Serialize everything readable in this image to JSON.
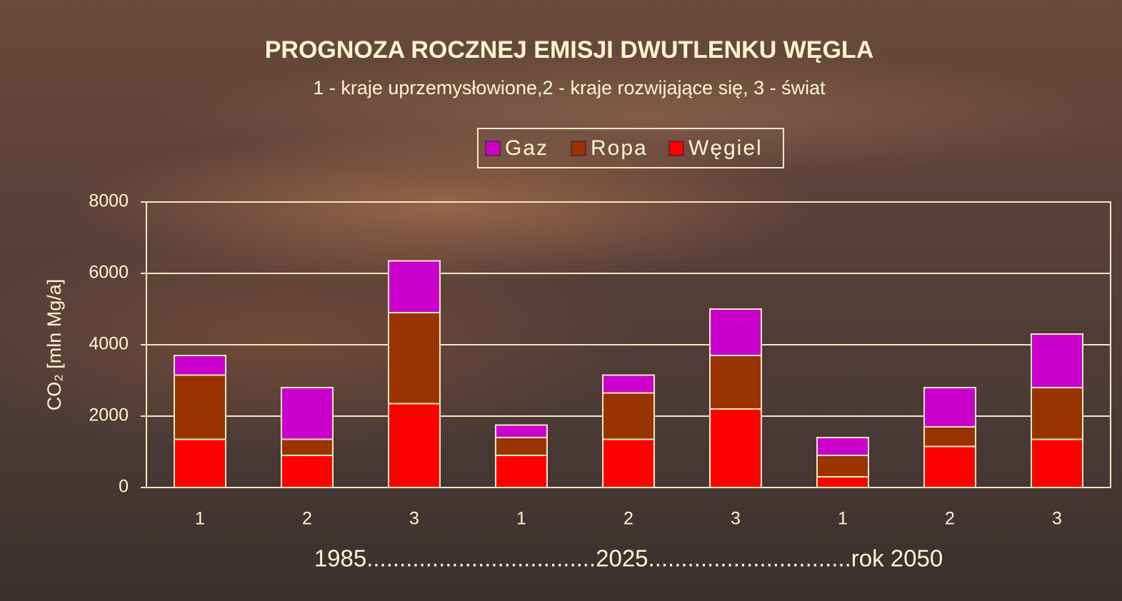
{
  "chart_data": {
    "type": "stacked_bar",
    "title": "PROGNOZA ROCZNEJ EMISJI DWUTLENKU WĘGLA",
    "subtitle": "1 - kraje uprzemysłowione,2 - kraje rozwijające się, 3 - świat",
    "y_label": "CO₂ [mln Mg/a]",
    "x_label": "1985...................................2025...............................rok 2050",
    "categories": [
      "1",
      "2",
      "3",
      "1",
      "2",
      "3",
      "1",
      "2",
      "3"
    ],
    "series": [
      {
        "name": "Węgiel",
        "color": "#ff0000",
        "values": [
          1350,
          900,
          2350,
          900,
          1350,
          2200,
          300,
          1150,
          1350
        ]
      },
      {
        "name": "Ropa",
        "color": "#993300",
        "values": [
          1800,
          450,
          2550,
          500,
          1300,
          1500,
          600,
          550,
          1450
        ]
      },
      {
        "name": "Gaz",
        "color": "#cc00cc",
        "values": [
          550,
          1450,
          1450,
          350,
          500,
          1300,
          500,
          1100,
          1500
        ]
      }
    ],
    "ylim": [
      0,
      8000
    ],
    "yticks": [
      0,
      2000,
      4000,
      6000,
      8000
    ],
    "grid": true
  }
}
